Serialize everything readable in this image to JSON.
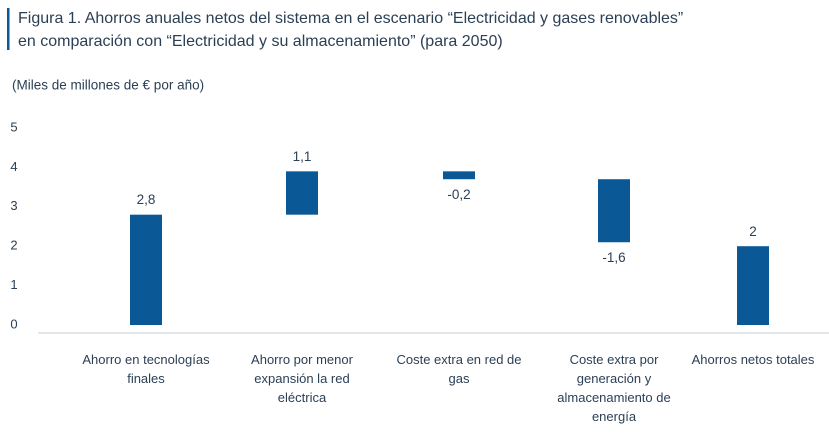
{
  "chart_data": {
    "type": "waterfall",
    "title": "Figura 1. Ahorros anuales netos del sistema en el escenario “Electricidad y gases renovables”",
    "subtitle": "en comparación con “Electricidad y su almacenamiento” (para 2050)",
    "y_axis_label": "(Miles de millones de € por año)",
    "categories": [
      "Ahorro en tecnologías finales",
      "Ahorro por menor expansión la red eléctrica",
      "Coste extra en red de gas",
      "Coste extra por generación y almacenamiento de energía",
      "Ahorros netos totales"
    ],
    "values": [
      2.8,
      1.1,
      -0.2,
      -1.6,
      2
    ],
    "value_labels": [
      "2,8",
      "1,1",
      "-0,2",
      "-1,6",
      "2"
    ],
    "color": "#0b5896",
    "ylim": [
      0,
      5
    ],
    "yticks": [
      0,
      1,
      2,
      3,
      4,
      5
    ],
    "grid": false
  }
}
